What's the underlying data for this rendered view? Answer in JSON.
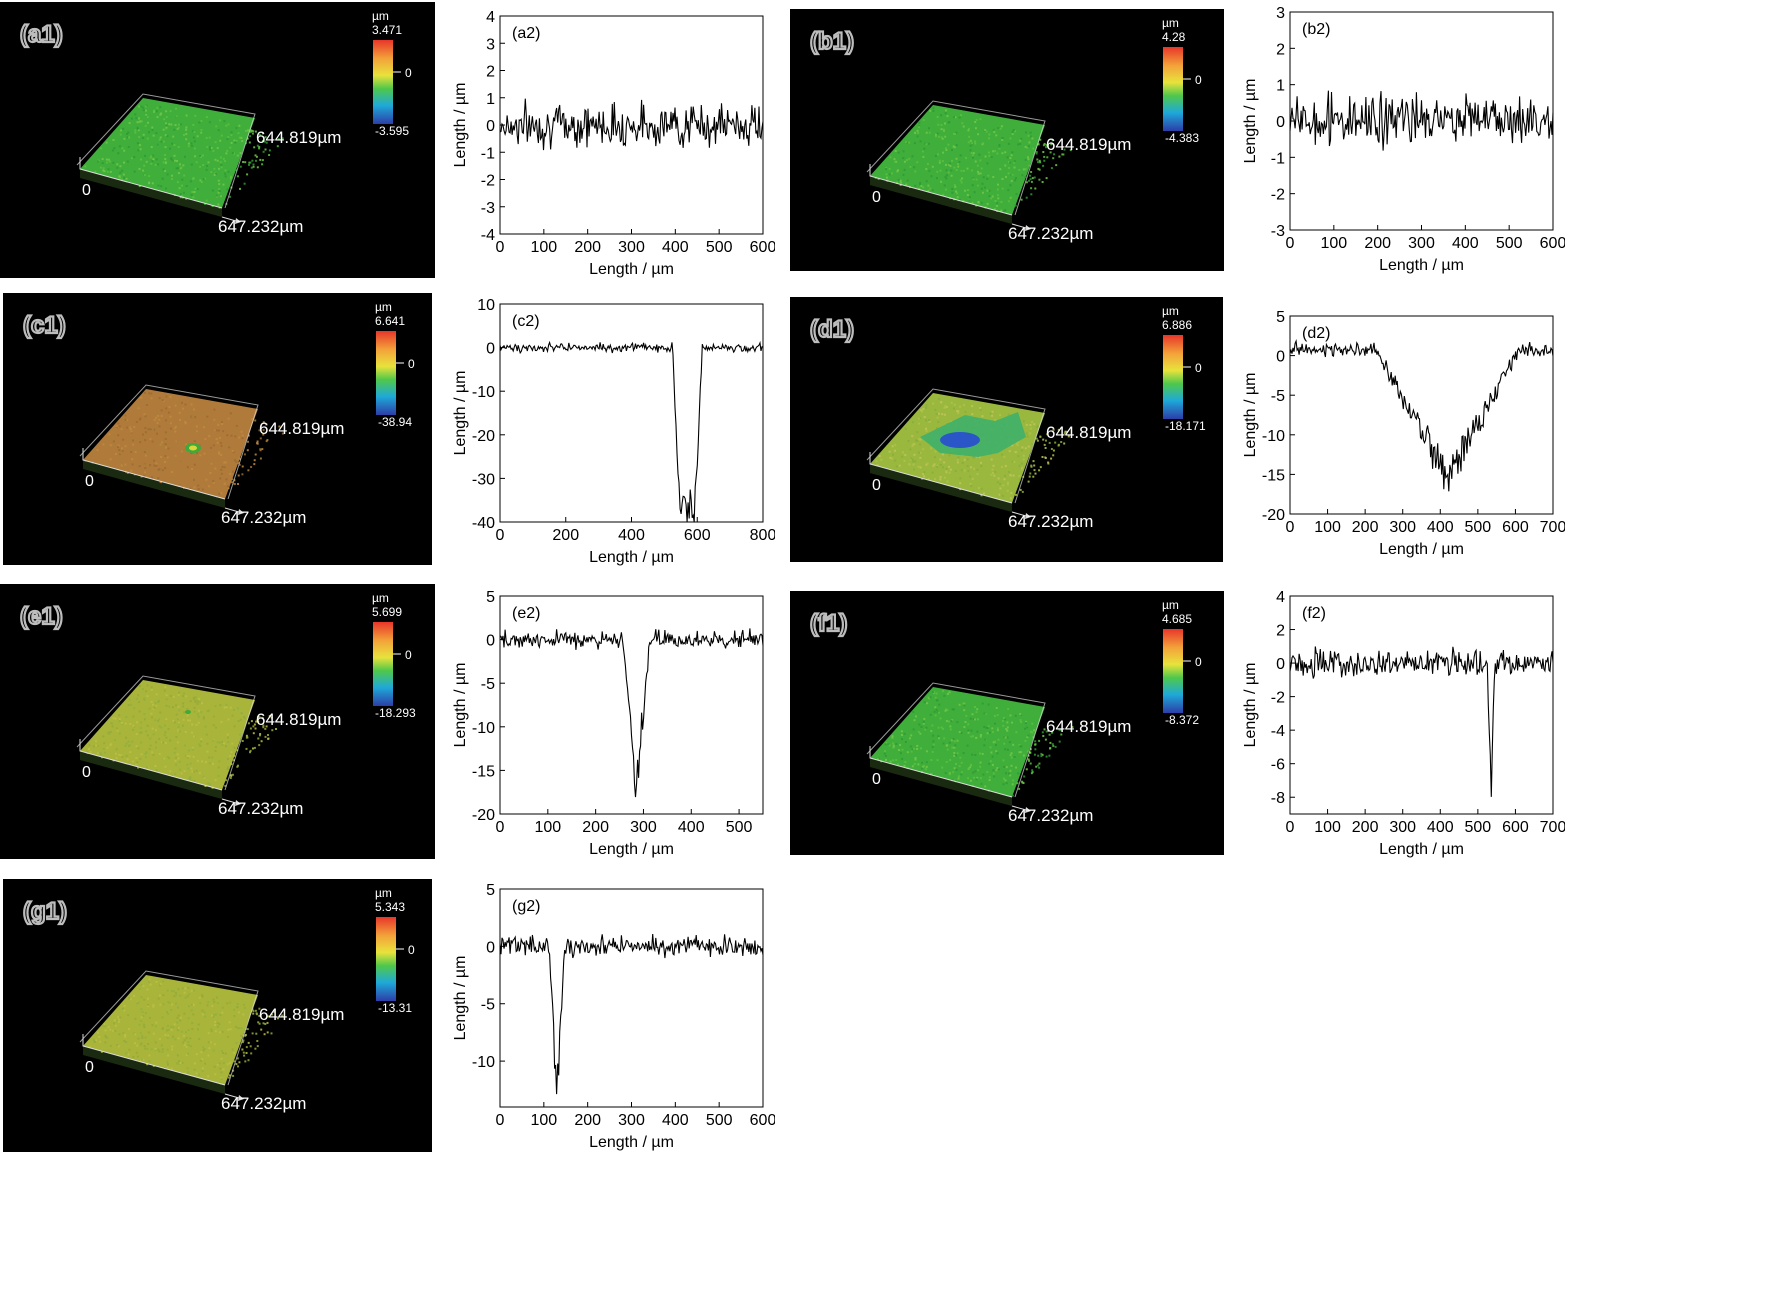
{
  "maps": [
    {
      "id": "a1",
      "label": "(a1)",
      "unit": "µm",
      "max": "3.471",
      "zero": "0",
      "min": "-3.595",
      "x_extent": "647.232µm",
      "y_extent": "644.819µm",
      "origin": "0",
      "surface": "green",
      "pit": "none"
    },
    {
      "id": "b1",
      "label": "(b1)",
      "unit": "µm",
      "max": "4.28",
      "zero": "0",
      "min": "-4.383",
      "x_extent": "647.232µm",
      "y_extent": "644.819µm",
      "origin": "0",
      "surface": "green",
      "pit": "none"
    },
    {
      "id": "c1",
      "label": "(c1)",
      "unit": "µm",
      "max": "6.641",
      "zero": "0",
      "min": "-38.94",
      "x_extent": "647.232µm",
      "y_extent": "644.819µm",
      "origin": "0",
      "surface": "orange",
      "pit": "small"
    },
    {
      "id": "d1",
      "label": "(d1)",
      "unit": "µm",
      "max": "6.886",
      "zero": "0",
      "min": "-18.171",
      "x_extent": "647.232µm",
      "y_extent": "644.819µm",
      "origin": "0",
      "surface": "yellowgreen",
      "pit": "large"
    },
    {
      "id": "e1",
      "label": "(e1)",
      "unit": "µm",
      "max": "5.699",
      "zero": "0",
      "min": "-18.293",
      "x_extent": "647.232µm",
      "y_extent": "644.819µm",
      "origin": "0",
      "surface": "olive",
      "pit": "tiny"
    },
    {
      "id": "f1",
      "label": "(f1)",
      "unit": "µm",
      "max": "4.685",
      "zero": "0",
      "min": "-8.372",
      "x_extent": "647.232µm",
      "y_extent": "644.819µm",
      "origin": "0",
      "surface": "green",
      "pit": "none"
    },
    {
      "id": "g1",
      "label": "(g1)",
      "unit": "µm",
      "max": "5.343",
      "zero": "0",
      "min": "-13.31",
      "x_extent": "647.232µm",
      "y_extent": "644.819µm",
      "origin": "0",
      "surface": "olive",
      "pit": "none"
    }
  ],
  "chart_data": [
    {
      "id": "a2",
      "type": "line",
      "panel_label": "(a2)",
      "xlabel": "Length / µm",
      "ylabel": "Length / µm",
      "xlim": [
        0,
        600
      ],
      "ylim": [
        -4,
        4
      ],
      "xticks": [
        0,
        100,
        200,
        300,
        400,
        500,
        600
      ],
      "yticks": [
        -4,
        -3,
        -2,
        -1,
        0,
        1,
        2,
        3,
        4
      ],
      "xticklabels": [
        "0",
        "100",
        "200",
        "300",
        "400",
        "500",
        "600"
      ],
      "yticklabels": [
        "-4",
        "-3",
        "-2",
        "-1",
        "0",
        "1",
        "2",
        "3",
        "4"
      ],
      "baseline": 0,
      "noise": 0.55,
      "features": []
    },
    {
      "id": "b2",
      "type": "line",
      "panel_label": "(b2)",
      "xlabel": "Length / µm",
      "ylabel": "Length / µm",
      "xlim": [
        0,
        600
      ],
      "ylim": [
        -3,
        3
      ],
      "xticks": [
        0,
        100,
        200,
        300,
        400,
        500,
        600
      ],
      "yticks": [
        -3,
        -2,
        -1,
        0,
        1,
        2,
        3
      ],
      "xticklabels": [
        "0",
        "100",
        "200",
        "300",
        "400",
        "500",
        "600"
      ],
      "yticklabels": [
        "-3",
        "-2",
        "-1",
        "0",
        "1",
        "2",
        "3"
      ],
      "baseline": 0,
      "noise": 0.5,
      "features": []
    },
    {
      "id": "c2",
      "type": "line",
      "panel_label": "(c2)",
      "xlabel": "Length / µm",
      "ylabel": "Length / µm",
      "xlim": [
        0,
        800
      ],
      "ylim": [
        -40,
        10
      ],
      "xticks": [
        0,
        200,
        400,
        600,
        800
      ],
      "yticks": [
        -40,
        -30,
        -20,
        -10,
        0,
        10
      ],
      "xticklabels": [
        "0",
        "200",
        "400",
        "600",
        "800"
      ],
      "yticklabels": [
        "-40",
        "-30",
        "-20",
        "-10",
        "0",
        "10"
      ],
      "baseline": 0,
      "noise": 0.7,
      "features": [
        {
          "center": 570,
          "half_width": 45,
          "depth": -36,
          "shape": "flat"
        }
      ]
    },
    {
      "id": "d2",
      "type": "line",
      "panel_label": "(d2)",
      "xlabel": "Length / µm",
      "ylabel": "Length / µm",
      "xlim": [
        0,
        700
      ],
      "ylim": [
        -20,
        5
      ],
      "xticks": [
        0,
        100,
        200,
        300,
        400,
        500,
        600,
        700
      ],
      "yticks": [
        -20,
        -15,
        -10,
        -5,
        0,
        5
      ],
      "xticklabels": [
        "0",
        "100",
        "200",
        "300",
        "400",
        "500",
        "600",
        "700"
      ],
      "yticklabels": [
        "-20",
        "-15",
        "-10",
        "-5",
        "0",
        "5"
      ],
      "baseline": 0.7,
      "noise": 0.6,
      "features": [
        {
          "center": 420,
          "half_width": 190,
          "depth": -15.5,
          "shape": "v"
        }
      ]
    },
    {
      "id": "e2",
      "type": "line",
      "panel_label": "(e2)",
      "xlabel": "Length / µm",
      "ylabel": "Length / µm",
      "xlim": [
        0,
        550
      ],
      "ylim": [
        -20,
        5
      ],
      "xticks": [
        0,
        100,
        200,
        300,
        400,
        500
      ],
      "yticks": [
        -20,
        -15,
        -10,
        -5,
        0,
        5
      ],
      "xticklabels": [
        "0",
        "100",
        "200",
        "300",
        "400",
        "500"
      ],
      "yticklabels": [
        "-20",
        "-15",
        "-10",
        "-5",
        "0",
        "5"
      ],
      "baseline": 0,
      "noise": 0.7,
      "features": [
        {
          "center": 285,
          "half_width": 28,
          "depth": -17,
          "shape": "v"
        }
      ]
    },
    {
      "id": "f2",
      "type": "line",
      "panel_label": "(f2)",
      "xlabel": "Length / µm",
      "ylabel": "Length / µm",
      "xlim": [
        0,
        700
      ],
      "ylim": [
        -9,
        4
      ],
      "xticks": [
        0,
        100,
        200,
        300,
        400,
        500,
        600,
        700
      ],
      "yticks": [
        -8,
        -6,
        -4,
        -2,
        0,
        2,
        4
      ],
      "xticklabels": [
        "0",
        "100",
        "200",
        "300",
        "400",
        "500",
        "600",
        "700"
      ],
      "yticklabels": [
        "-8",
        "-6",
        "-4",
        "-2",
        "0",
        "2",
        "4"
      ],
      "baseline": 0,
      "noise": 0.55,
      "features": [
        {
          "center": 535,
          "half_width": 10,
          "depth": -7.2,
          "shape": "v"
        }
      ]
    },
    {
      "id": "g2",
      "type": "line",
      "panel_label": "(g2)",
      "xlabel": "Length / µm",
      "ylabel": "Length / µm",
      "xlim": [
        0,
        600
      ],
      "ylim": [
        -14,
        5
      ],
      "xticks": [
        0,
        100,
        200,
        300,
        400,
        500,
        600
      ],
      "yticks": [
        -10,
        -5,
        0,
        5
      ],
      "xticklabels": [
        "0",
        "100",
        "200",
        "300",
        "400",
        "500",
        "600"
      ],
      "yticklabels": [
        "-10",
        "-5",
        "0",
        "5"
      ],
      "baseline": 0,
      "noise": 0.6,
      "features": [
        {
          "center": 130,
          "half_width": 18,
          "depth": -12.3,
          "shape": "v"
        }
      ]
    }
  ]
}
